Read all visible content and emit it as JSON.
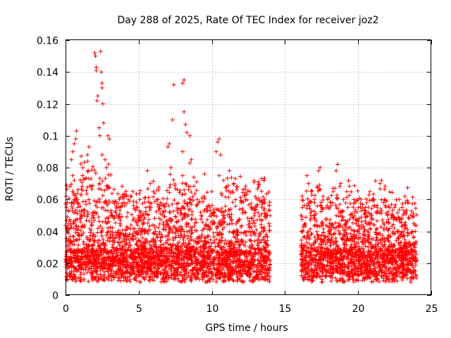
{
  "chart_data": {
    "type": "scatter",
    "title": "Day 288 of 2025, Rate Of TEC Index for receiver joz2",
    "xlabel": "GPS time / hours",
    "ylabel": "ROTI / TECUs",
    "xlim": [
      0,
      25
    ],
    "ylim": [
      0,
      0.16
    ],
    "xticks": [
      0,
      5,
      10,
      15,
      20,
      25
    ],
    "yticks": [
      0,
      0.02,
      0.04,
      0.06,
      0.08,
      0.1,
      0.12,
      0.14,
      0.16
    ],
    "xtick_labels": [
      "0",
      "5",
      "10",
      "15",
      "20",
      "25"
    ],
    "ytick_labels": [
      "0",
      "0.02",
      "0.04",
      "0.06",
      "0.08",
      "0.1",
      "0.12",
      "0.14",
      "0.16"
    ],
    "grid": true,
    "marker": "+",
    "color": "#ff0000",
    "data_gap_hours": [
      14.0,
      16.1
    ],
    "series": [
      {
        "values": [
          [
            0.3,
            0.068
          ],
          [
            0.4,
            0.085
          ],
          [
            0.5,
            0.09
          ],
          [
            0.6,
            0.095
          ],
          [
            0.7,
            0.098
          ],
          [
            0.75,
            0.103
          ],
          [
            0.5,
            0.075
          ],
          [
            0.6,
            0.072
          ],
          [
            0.4,
            0.058
          ],
          [
            0.8,
            0.06
          ],
          [
            1.5,
            0.088
          ],
          [
            1.6,
            0.093
          ],
          [
            1.55,
            0.078
          ],
          [
            2.0,
            0.152
          ],
          [
            2.05,
            0.15
          ],
          [
            2.1,
            0.143
          ],
          [
            2.1,
            0.141
          ],
          [
            2.15,
            0.122
          ],
          [
            2.2,
            0.125
          ],
          [
            2.4,
            0.153
          ],
          [
            2.45,
            0.14
          ],
          [
            2.5,
            0.133
          ],
          [
            2.5,
            0.13
          ],
          [
            2.55,
            0.12
          ],
          [
            2.3,
            0.105
          ],
          [
            2.35,
            0.1
          ],
          [
            2.6,
            0.108
          ],
          [
            2.5,
            0.088
          ],
          [
            2.7,
            0.085
          ],
          [
            2.9,
            0.1
          ],
          [
            3.0,
            0.098
          ],
          [
            2.8,
            0.08
          ],
          [
            3.2,
            0.05
          ],
          [
            3.5,
            0.05
          ],
          [
            3.7,
            0.055
          ],
          [
            4.0,
            0.058
          ],
          [
            4.3,
            0.06
          ],
          [
            4.5,
            0.062
          ],
          [
            4.6,
            0.065
          ],
          [
            5.0,
            0.05
          ],
          [
            5.5,
            0.055
          ],
          [
            5.3,
            0.045
          ],
          [
            5.6,
            0.078
          ],
          [
            5.8,
            0.07
          ],
          [
            6.0,
            0.065
          ],
          [
            6.3,
            0.06
          ],
          [
            6.5,
            0.058
          ],
          [
            7.0,
            0.093
          ],
          [
            7.1,
            0.095
          ],
          [
            7.2,
            0.08
          ],
          [
            7.3,
            0.11
          ],
          [
            7.4,
            0.132
          ],
          [
            8.0,
            0.133
          ],
          [
            8.1,
            0.135
          ],
          [
            8.1,
            0.115
          ],
          [
            8.2,
            0.107
          ],
          [
            8.0,
            0.09
          ],
          [
            8.3,
            0.102
          ],
          [
            8.5,
            0.1
          ],
          [
            8.5,
            0.083
          ],
          [
            8.6,
            0.085
          ],
          [
            8.0,
            0.075
          ],
          [
            8.2,
            0.07
          ],
          [
            8.4,
            0.068
          ],
          [
            9.0,
            0.06
          ],
          [
            9.5,
            0.076
          ],
          [
            10.0,
            0.065
          ],
          [
            10.4,
            0.096
          ],
          [
            10.5,
            0.098
          ],
          [
            10.3,
            0.09
          ],
          [
            10.6,
            0.088
          ],
          [
            10.5,
            0.075
          ],
          [
            10.8,
            0.072
          ],
          [
            11.0,
            0.068
          ],
          [
            11.2,
            0.078
          ],
          [
            11.5,
            0.07
          ],
          [
            12.0,
            0.058
          ],
          [
            12.3,
            0.06
          ],
          [
            12.6,
            0.065
          ],
          [
            13.0,
            0.055
          ],
          [
            13.2,
            0.068
          ],
          [
            13.4,
            0.073
          ],
          [
            13.6,
            0.06
          ],
          [
            13.8,
            0.05
          ],
          [
            13.9,
            0.045
          ],
          [
            16.1,
            0.05
          ],
          [
            16.2,
            0.055
          ],
          [
            16.5,
            0.075
          ],
          [
            16.6,
            0.07
          ],
          [
            16.8,
            0.065
          ],
          [
            17.0,
            0.06
          ],
          [
            17.2,
            0.068
          ],
          [
            17.3,
            0.078
          ],
          [
            17.4,
            0.08
          ],
          [
            17.6,
            0.062
          ],
          [
            18.0,
            0.055
          ],
          [
            18.3,
            0.065
          ],
          [
            18.5,
            0.078
          ],
          [
            18.6,
            0.082
          ],
          [
            18.8,
            0.07
          ],
          [
            19.0,
            0.06
          ],
          [
            19.3,
            0.055
          ],
          [
            19.5,
            0.05
          ],
          [
            19.8,
            0.058
          ],
          [
            20.2,
            0.06
          ],
          [
            20.5,
            0.055
          ],
          [
            20.8,
            0.065
          ],
          [
            21.0,
            0.06
          ],
          [
            21.3,
            0.055
          ],
          [
            21.5,
            0.07
          ],
          [
            21.6,
            0.072
          ],
          [
            21.8,
            0.06
          ],
          [
            22.0,
            0.05
          ],
          [
            22.5,
            0.055
          ],
          [
            22.8,
            0.06
          ],
          [
            23.0,
            0.055
          ],
          [
            23.2,
            0.062
          ],
          [
            23.4,
            0.058
          ],
          [
            23.6,
            0.05
          ],
          [
            23.8,
            0.045
          ],
          [
            23.9,
            0.04
          ]
        ]
      }
    ]
  }
}
